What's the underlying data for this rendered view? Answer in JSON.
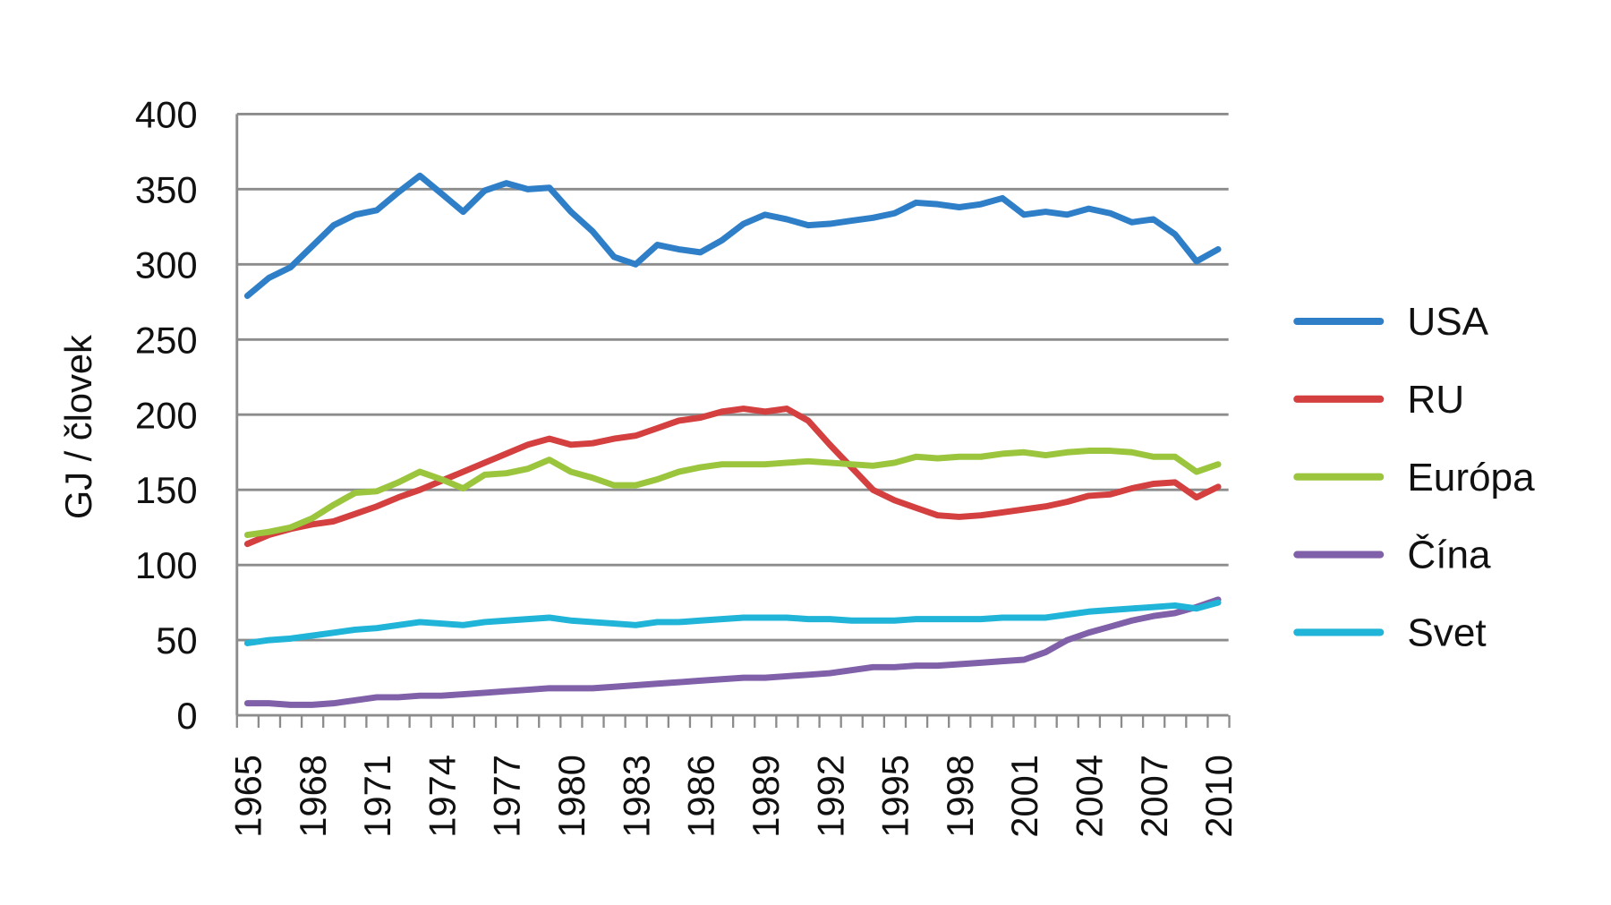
{
  "chart_data": {
    "type": "line",
    "title": "",
    "xlabel": "",
    "ylabel": "GJ / človek",
    "ylim": [
      0,
      400
    ],
    "yticks": [
      0,
      50,
      100,
      150,
      200,
      250,
      300,
      350,
      400
    ],
    "xlim": [
      1965,
      2010
    ],
    "xtick_labels": [
      "1965",
      "1968",
      "1971",
      "1974",
      "1977",
      "1980",
      "1983",
      "1986",
      "1989",
      "1992",
      "1995",
      "1998",
      "2001",
      "2004",
      "2007",
      "2010"
    ],
    "grid": true,
    "legend_position": "right",
    "x": [
      1965,
      1966,
      1967,
      1968,
      1969,
      1970,
      1971,
      1972,
      1973,
      1974,
      1975,
      1976,
      1977,
      1978,
      1979,
      1980,
      1981,
      1982,
      1983,
      1984,
      1985,
      1986,
      1987,
      1988,
      1989,
      1990,
      1991,
      1992,
      1993,
      1994,
      1995,
      1996,
      1997,
      1998,
      1999,
      2000,
      2001,
      2002,
      2003,
      2004,
      2005,
      2006,
      2007,
      2008,
      2009,
      2010
    ],
    "series": [
      {
        "name": "USA",
        "color": "#2e7fc8",
        "values": [
          279,
          291,
          298,
          312,
          326,
          333,
          336,
          348,
          359,
          347,
          335,
          349,
          354,
          350,
          351,
          335,
          322,
          305,
          300,
          313,
          310,
          308,
          316,
          327,
          333,
          330,
          326,
          327,
          329,
          331,
          334,
          341,
          340,
          338,
          340,
          344,
          333,
          335,
          333,
          337,
          334,
          328,
          330,
          320,
          302,
          310
        ]
      },
      {
        "name": "RU",
        "color": "#d43f3f",
        "values": [
          114,
          120,
          124,
          127,
          129,
          134,
          139,
          145,
          150,
          156,
          162,
          168,
          174,
          180,
          184,
          180,
          181,
          184,
          186,
          191,
          196,
          198,
          202,
          204,
          202,
          204,
          196,
          180,
          165,
          150,
          143,
          138,
          133,
          132,
          133,
          135,
          137,
          139,
          142,
          146,
          147,
          151,
          154,
          155,
          145,
          152
        ]
      },
      {
        "name": "Európa",
        "color": "#9bc53d",
        "values": [
          120,
          122,
          125,
          131,
          140,
          148,
          149,
          155,
          162,
          157,
          151,
          160,
          161,
          164,
          170,
          162,
          158,
          153,
          153,
          157,
          162,
          165,
          167,
          167,
          167,
          168,
          169,
          168,
          167,
          166,
          168,
          172,
          171,
          172,
          172,
          174,
          175,
          173,
          175,
          176,
          176,
          175,
          172,
          172,
          162,
          167
        ]
      },
      {
        "name": "Čína",
        "color": "#8060a8",
        "values": [
          8,
          8,
          7,
          7,
          8,
          10,
          12,
          12,
          13,
          13,
          14,
          15,
          16,
          17,
          18,
          18,
          18,
          19,
          20,
          21,
          22,
          23,
          24,
          25,
          25,
          26,
          27,
          28,
          30,
          32,
          32,
          33,
          33,
          34,
          35,
          36,
          37,
          42,
          50,
          55,
          59,
          63,
          66,
          68,
          72,
          77
        ]
      },
      {
        "name": "Svet",
        "color": "#1fb4d8",
        "values": [
          48,
          50,
          51,
          53,
          55,
          57,
          58,
          60,
          62,
          61,
          60,
          62,
          63,
          64,
          65,
          63,
          62,
          61,
          60,
          62,
          62,
          63,
          64,
          65,
          65,
          65,
          64,
          64,
          63,
          63,
          63,
          64,
          64,
          64,
          64,
          65,
          65,
          65,
          67,
          69,
          70,
          71,
          72,
          73,
          71,
          75
        ]
      }
    ]
  }
}
